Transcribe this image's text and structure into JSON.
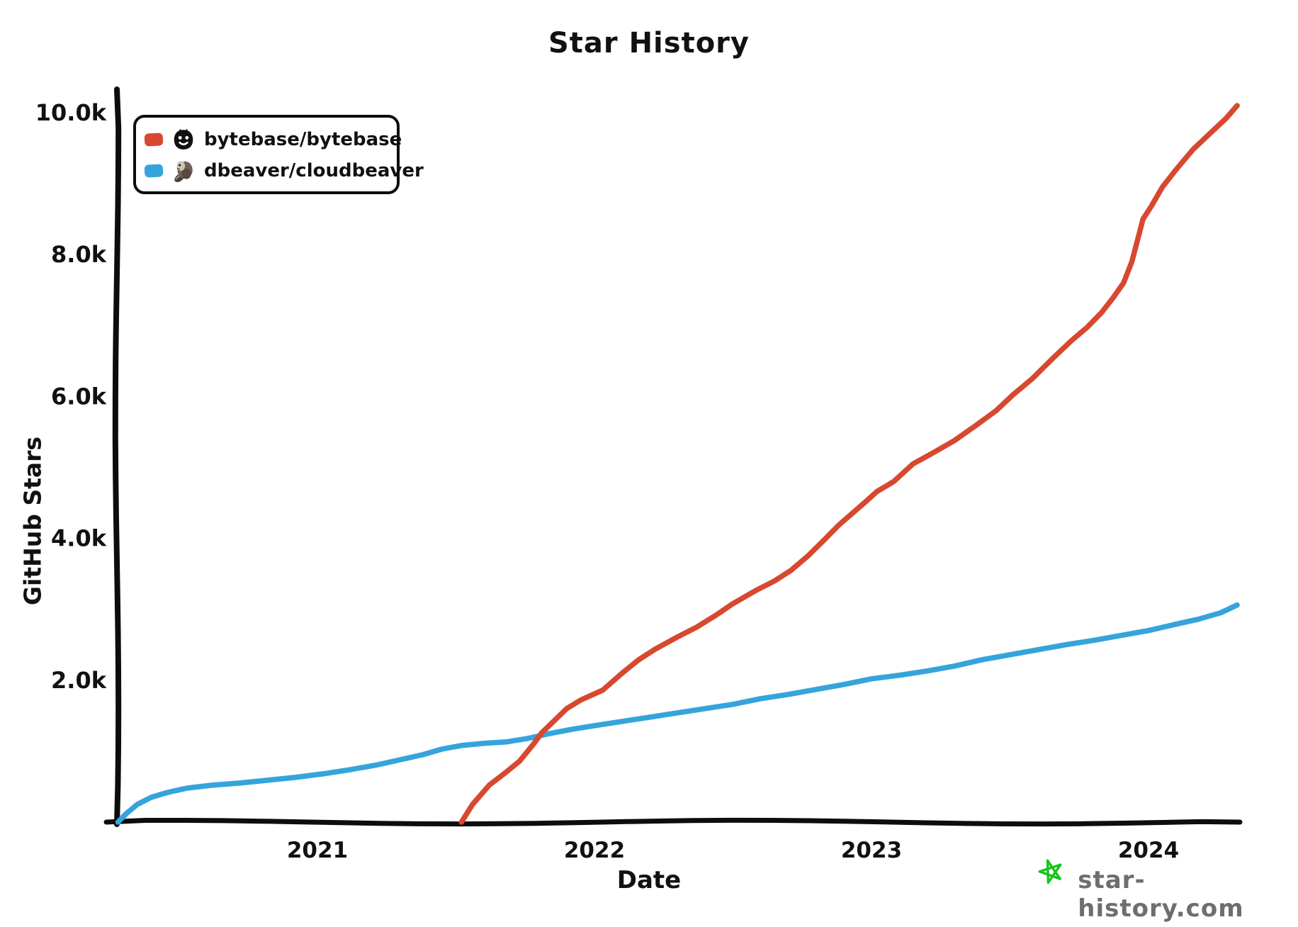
{
  "title": "Star History",
  "colors": {
    "bytebase_red": "#d7482f",
    "cloudbeaver_blue": "#36a4dc",
    "axis_black": "#0d0d0d",
    "watermark_green": "#17c41e",
    "watermark_gray": "#6e6e6e"
  },
  "legend": [
    {
      "label": "bytebase/bytebase",
      "color": "#d7482f",
      "icon": "bytebase-avatar"
    },
    {
      "label": "dbeaver/cloudbeaver",
      "color": "#36a4dc",
      "icon": "beaver-avatar"
    }
  ],
  "watermark": {
    "text": "star-history.com",
    "icon": "green-star"
  },
  "chart_data": {
    "type": "line",
    "title": "Star History",
    "xlabel": "Date",
    "ylabel": "GitHub Stars",
    "grid": false,
    "legend_position": "top-left",
    "xlim": [
      2020.27,
      2024.34
    ],
    "ylim": [
      0,
      10000
    ],
    "x_ticks": [
      {
        "label": "2021",
        "year": 2021
      },
      {
        "label": "2022",
        "year": 2022
      },
      {
        "label": "2023",
        "year": 2023
      },
      {
        "label": "2024",
        "year": 2024
      }
    ],
    "y_ticks": [
      {
        "label": "10.0k",
        "value": 10000
      },
      {
        "label": "8.0k",
        "value": 8000
      },
      {
        "label": "6.0k",
        "value": 6000
      },
      {
        "label": "4.0k",
        "value": 4000
      },
      {
        "label": "2.0k",
        "value": 2000
      }
    ],
    "series": [
      {
        "name": "dbeaver/cloudbeaver",
        "color": "#36a4dc",
        "points": [
          [
            2020.28,
            0
          ],
          [
            2020.31,
            120
          ],
          [
            2020.35,
            250
          ],
          [
            2020.4,
            350
          ],
          [
            2020.46,
            420
          ],
          [
            2020.53,
            480
          ],
          [
            2020.62,
            520
          ],
          [
            2020.72,
            550
          ],
          [
            2020.82,
            590
          ],
          [
            2020.92,
            630
          ],
          [
            2021.02,
            680
          ],
          [
            2021.12,
            740
          ],
          [
            2021.22,
            810
          ],
          [
            2021.3,
            880
          ],
          [
            2021.38,
            950
          ],
          [
            2021.45,
            1030
          ],
          [
            2021.52,
            1080
          ],
          [
            2021.6,
            1110
          ],
          [
            2021.68,
            1130
          ],
          [
            2021.76,
            1180
          ],
          [
            2021.84,
            1250
          ],
          [
            2021.92,
            1310
          ],
          [
            2022.0,
            1360
          ],
          [
            2022.1,
            1420
          ],
          [
            2022.2,
            1480
          ],
          [
            2022.3,
            1540
          ],
          [
            2022.4,
            1600
          ],
          [
            2022.5,
            1660
          ],
          [
            2022.6,
            1740
          ],
          [
            2022.7,
            1800
          ],
          [
            2022.8,
            1870
          ],
          [
            2022.9,
            1940
          ],
          [
            2023.0,
            2020
          ],
          [
            2023.1,
            2070
          ],
          [
            2023.2,
            2130
          ],
          [
            2023.3,
            2200
          ],
          [
            2023.4,
            2290
          ],
          [
            2023.5,
            2360
          ],
          [
            2023.6,
            2430
          ],
          [
            2023.7,
            2500
          ],
          [
            2023.8,
            2560
          ],
          [
            2023.9,
            2630
          ],
          [
            2024.0,
            2700
          ],
          [
            2024.1,
            2790
          ],
          [
            2024.18,
            2860
          ],
          [
            2024.26,
            2950
          ],
          [
            2024.32,
            3060
          ]
        ]
      },
      {
        "name": "bytebase/bytebase",
        "color": "#d7482f",
        "points": [
          [
            2021.52,
            0
          ],
          [
            2021.56,
            250
          ],
          [
            2021.62,
            520
          ],
          [
            2021.68,
            700
          ],
          [
            2021.73,
            860
          ],
          [
            2021.78,
            1100
          ],
          [
            2021.81,
            1260
          ],
          [
            2021.86,
            1450
          ],
          [
            2021.9,
            1600
          ],
          [
            2021.95,
            1720
          ],
          [
            2022.03,
            1860
          ],
          [
            2022.1,
            2100
          ],
          [
            2022.16,
            2290
          ],
          [
            2022.22,
            2440
          ],
          [
            2022.3,
            2610
          ],
          [
            2022.37,
            2750
          ],
          [
            2022.44,
            2920
          ],
          [
            2022.5,
            3080
          ],
          [
            2022.58,
            3260
          ],
          [
            2022.65,
            3400
          ],
          [
            2022.71,
            3550
          ],
          [
            2022.77,
            3750
          ],
          [
            2022.83,
            3980
          ],
          [
            2022.88,
            4180
          ],
          [
            2022.93,
            4350
          ],
          [
            2022.98,
            4520
          ],
          [
            2023.02,
            4660
          ],
          [
            2023.08,
            4800
          ],
          [
            2023.15,
            5050
          ],
          [
            2023.22,
            5200
          ],
          [
            2023.3,
            5380
          ],
          [
            2023.38,
            5600
          ],
          [
            2023.45,
            5800
          ],
          [
            2023.51,
            6020
          ],
          [
            2023.58,
            6250
          ],
          [
            2023.65,
            6520
          ],
          [
            2023.72,
            6780
          ],
          [
            2023.78,
            6980
          ],
          [
            2023.83,
            7180
          ],
          [
            2023.87,
            7380
          ],
          [
            2023.91,
            7600
          ],
          [
            2023.94,
            7900
          ],
          [
            2023.96,
            8200
          ],
          [
            2023.98,
            8500
          ],
          [
            2024.01,
            8680
          ],
          [
            2024.05,
            8950
          ],
          [
            2024.1,
            9200
          ],
          [
            2024.16,
            9480
          ],
          [
            2024.22,
            9700
          ],
          [
            2024.28,
            9920
          ],
          [
            2024.32,
            10100
          ]
        ]
      }
    ]
  }
}
